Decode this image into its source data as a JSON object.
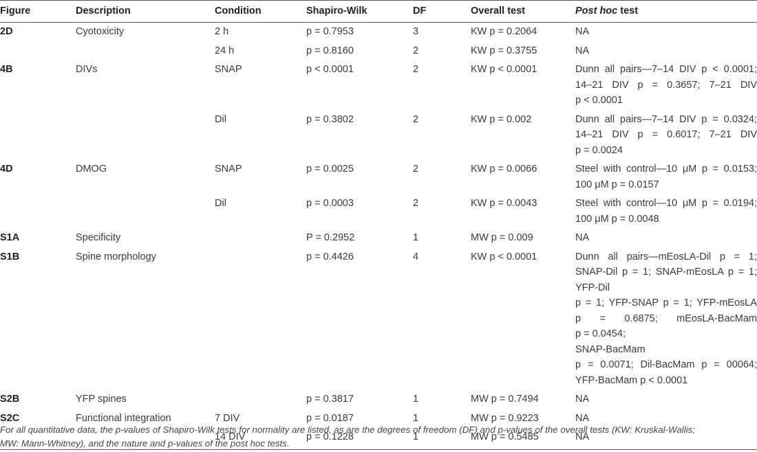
{
  "headers": {
    "figure": "Figure",
    "description": "Description",
    "condition": "Condition",
    "shapiro": "Shapiro-Wilk",
    "df": "DF",
    "overall": "Overall test",
    "posthoc_italic": "Post hoc",
    "posthoc_rest": " test"
  },
  "rows": [
    {
      "figure": "2D",
      "description": "Cyotoxicity",
      "condition": "2 h",
      "shapiro": "p = 0.7953",
      "df": "3",
      "overall": "KW p = 0.2064",
      "posthoc": [
        "NA"
      ]
    },
    {
      "figure": "",
      "description": "",
      "condition": "24 h",
      "shapiro": "p = 0.8160",
      "df": "2",
      "overall": "KW p = 0.3755",
      "posthoc": [
        "NA"
      ]
    },
    {
      "figure": "4B",
      "description": "DIVs",
      "condition": "SNAP",
      "shapiro": "p < 0.0001",
      "df": "2",
      "overall": "KW p < 0.0001",
      "posthoc": [
        "Dunn all pairs—7–14 DIV p < 0.0001;",
        "14–21 DIV p = 0.3657; 7–21 DIV",
        "p < 0.0001"
      ]
    },
    {
      "figure": "",
      "description": "",
      "condition": "Dil",
      "shapiro": "p = 0.3802",
      "df": "2",
      "overall": "KW p = 0.002",
      "posthoc": [
        "Dunn all pairs—7–14 DIV p = 0.0324;",
        "14–21 DIV p = 0.6017; 7–21 DIV",
        "p = 0.0024"
      ]
    },
    {
      "figure": "4D",
      "description": "DMOG",
      "condition": "SNAP",
      "shapiro": "p = 0.0025",
      "df": "2",
      "overall": "KW p = 0.0066",
      "posthoc": [
        "Steel with control—10 μM p = 0.0153;",
        "100 μM p = 0.0157"
      ]
    },
    {
      "figure": "",
      "description": "",
      "condition": "Dil",
      "shapiro": "p = 0.0003",
      "df": "2",
      "overall": "KW p = 0.0043",
      "posthoc": [
        "Steel with control—10 μM p = 0.0194;",
        "100 μM p = 0.0048"
      ]
    },
    {
      "figure": "S1A",
      "description": "Specificity",
      "condition": "",
      "shapiro": "P = 0.2952",
      "df": "1",
      "overall": "MW p = 0.009",
      "posthoc": [
        "NA"
      ]
    },
    {
      "figure": "S1B",
      "description": "Spine morphology",
      "condition": "",
      "shapiro": "p = 0.4426",
      "df": "4",
      "overall": "KW p < 0.0001",
      "posthoc": [
        "Dunn all pairs—mEosLA-Dil p = 1;",
        "SNAP-Dil p = 1; SNAP-mEosLA p = 1;",
        "YFP-Dil",
        "p = 1; YFP-SNAP p = 1; YFP-mEosLA",
        "p = 0.6875; mEosLA-BacMam",
        "p = 0.0454;",
        "SNAP-BacMam",
        "p = 0.0071; Dil-BacMam p = 00064;",
        "YFP-BacMam p < 0.0001"
      ]
    },
    {
      "figure": "S2B",
      "description": "YFP spines",
      "condition": "",
      "shapiro": "p = 0.3817",
      "df": "1",
      "overall": "MW p = 0.7494",
      "posthoc": [
        "NA"
      ]
    },
    {
      "figure": "S2C",
      "description": "Functional integration",
      "condition": "7 DIV",
      "shapiro": "p = 0.0187",
      "df": "1",
      "overall": "MW p = 0.9223",
      "posthoc": [
        "NA"
      ]
    },
    {
      "figure": "",
      "description": "",
      "condition": "14 DIV",
      "shapiro": "p = 0.1228",
      "df": "1",
      "overall": "MW p = 0.5485",
      "posthoc": [
        "NA"
      ]
    }
  ],
  "footnote": [
    "For all quantitative data, the p-values of Shapiro-Wilk tests for normality are listed, as are the degrees of freedom (DF) and p-values of the overall tests (KW: Kruskal-Wallis;",
    "MW: Mann-Whitney), and the nature and p-values of the post hoc tests."
  ]
}
